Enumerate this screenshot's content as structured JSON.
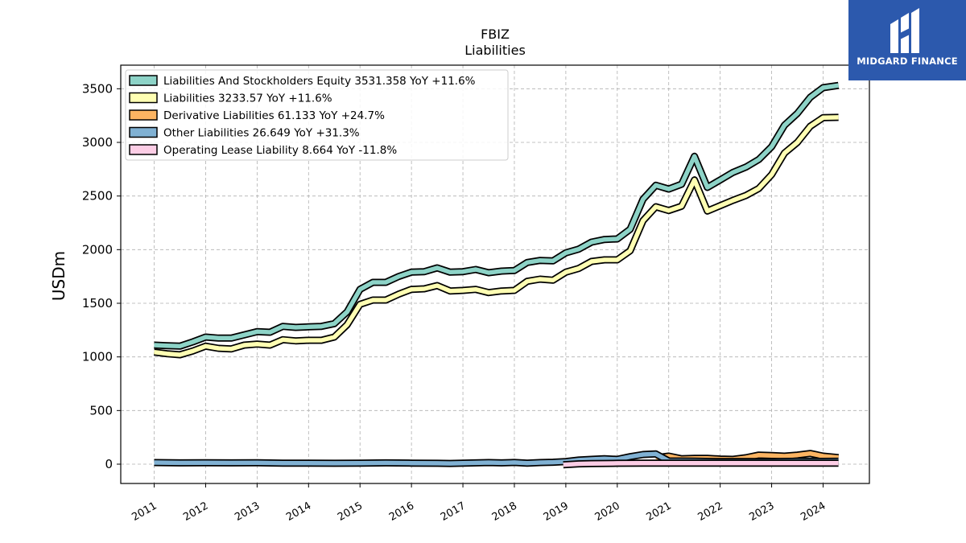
{
  "header": {
    "ticker": "FBIZ",
    "subtitle": "Liabilities"
  },
  "brand": {
    "name": "MIDGARD FINANCE",
    "color": "#2c59ad",
    "logo_icon": "midgard-logo-icon"
  },
  "chart_data": {
    "type": "line",
    "title": "FBIZ",
    "subtitle": "Liabilities",
    "xlabel": "",
    "ylabel": "USDm",
    "xlim": [
      2010.35,
      2024.9
    ],
    "ylim": [
      -180,
      3720
    ],
    "yticks": [
      0,
      500,
      1000,
      1500,
      2000,
      2500,
      3000,
      3500
    ],
    "xticks": [
      "2011",
      "2012",
      "2013",
      "2014",
      "2015",
      "2016",
      "2017",
      "2018",
      "2019",
      "2020",
      "2021",
      "2022",
      "2023",
      "2024"
    ],
    "grid": true,
    "legend_position": "top-left",
    "series": [
      {
        "name": "Liabilities And Stockholders Equity",
        "legend": "Liabilities And Stockholders Equity  3531.358 YoY +11.6%",
        "color": "#8dd3c7",
        "x": [
          2011.0,
          2011.25,
          2011.5,
          2011.75,
          2012.0,
          2012.25,
          2012.5,
          2012.75,
          2013.0,
          2013.25,
          2013.5,
          2013.75,
          2014.0,
          2014.25,
          2014.5,
          2014.75,
          2015.0,
          2015.25,
          2015.5,
          2015.75,
          2016.0,
          2016.25,
          2016.5,
          2016.75,
          2017.0,
          2017.25,
          2017.5,
          2017.75,
          2018.0,
          2018.25,
          2018.5,
          2018.75,
          2019.0,
          2019.25,
          2019.5,
          2019.75,
          2020.0,
          2020.25,
          2020.5,
          2020.75,
          2021.0,
          2021.25,
          2021.5,
          2021.75,
          2022.0,
          2022.25,
          2022.5,
          2022.75,
          2023.0,
          2023.25,
          2023.5,
          2023.75,
          2024.0,
          2024.3
        ],
        "values": [
          1110,
          1105,
          1100,
          1140,
          1185,
          1175,
          1175,
          1205,
          1235,
          1230,
          1285,
          1275,
          1280,
          1285,
          1310,
          1420,
          1630,
          1695,
          1695,
          1750,
          1790,
          1795,
          1830,
          1790,
          1795,
          1815,
          1785,
          1800,
          1805,
          1880,
          1900,
          1895,
          1970,
          2005,
          2070,
          2095,
          2100,
          2190,
          2470,
          2600,
          2565,
          2610,
          2870,
          2580,
          2650,
          2720,
          2770,
          2840,
          2960,
          3160,
          3270,
          3420,
          3510,
          3531.358
        ]
      },
      {
        "name": "Liabilities",
        "legend": "Liabilities  3233.57 YoY +11.6%",
        "color": "#ffffb3",
        "x": [
          2011.0,
          2011.25,
          2011.5,
          2011.75,
          2012.0,
          2012.25,
          2012.5,
          2012.75,
          2013.0,
          2013.25,
          2013.5,
          2013.75,
          2014.0,
          2014.25,
          2014.5,
          2014.75,
          2015.0,
          2015.25,
          2015.5,
          2015.75,
          2016.0,
          2016.25,
          2016.5,
          2016.75,
          2017.0,
          2017.25,
          2017.5,
          2017.75,
          2018.0,
          2018.25,
          2018.5,
          2018.75,
          2019.0,
          2019.25,
          2019.5,
          2019.75,
          2020.0,
          2020.25,
          2020.5,
          2020.75,
          2021.0,
          2021.25,
          2021.5,
          2021.75,
          2022.0,
          2022.25,
          2022.5,
          2022.75,
          2023.0,
          2023.25,
          2023.5,
          2023.75,
          2024.0,
          2024.3
        ],
        "values": [
          1045,
          1030,
          1020,
          1055,
          1100,
          1080,
          1075,
          1110,
          1120,
          1110,
          1160,
          1150,
          1155,
          1155,
          1185,
          1300,
          1490,
          1530,
          1530,
          1585,
          1630,
          1635,
          1665,
          1615,
          1620,
          1630,
          1600,
          1615,
          1620,
          1705,
          1725,
          1715,
          1790,
          1825,
          1890,
          1905,
          1905,
          1990,
          2270,
          2400,
          2365,
          2405,
          2650,
          2360,
          2410,
          2460,
          2505,
          2570,
          2700,
          2900,
          3000,
          3150,
          3230,
          3233.57
        ]
      },
      {
        "name": "Derivative Liabilities",
        "legend": "Derivative Liabilities  61.133 YoY +24.7%",
        "color": "#fdb462",
        "x": [
          2020.75,
          2021.0,
          2021.25,
          2021.5,
          2021.75,
          2022.0,
          2022.25,
          2022.5,
          2022.75,
          2023.0,
          2023.25,
          2023.5,
          2023.75,
          2024.0,
          2024.3
        ],
        "values": [
          60,
          75,
          50,
          55,
          55,
          48,
          45,
          60,
          85,
          80,
          75,
          85,
          100,
          75,
          61.133
        ]
      },
      {
        "name": "Other Liabilities",
        "legend": "Other Liabilities  26.649 YoY +31.3%",
        "color": "#80b1d3",
        "x": [
          2011.0,
          2011.5,
          2012.0,
          2012.5,
          2013.0,
          2013.5,
          2014.0,
          2014.5,
          2015.0,
          2015.5,
          2016.0,
          2016.5,
          2016.75,
          2017.0,
          2017.5,
          2017.75,
          2018.0,
          2018.25,
          2018.5,
          2018.75,
          2019.0,
          2019.25,
          2019.5,
          2019.75,
          2020.0,
          2020.25,
          2020.5,
          2020.75,
          2021.0,
          2021.5,
          2022.0,
          2022.5,
          2023.0,
          2023.5,
          2024.0,
          2024.3
        ],
        "values": [
          15,
          12,
          13,
          12,
          13,
          10,
          9,
          8,
          10,
          12,
          10,
          8,
          7,
          10,
          15,
          12,
          16,
          10,
          15,
          18,
          25,
          38,
          45,
          50,
          45,
          70,
          90,
          95,
          30,
          28,
          24,
          25,
          25,
          27,
          26,
          26.649
        ]
      },
      {
        "name": "Operating Lease Liability",
        "legend": "Operating Lease Liability  8.664 YoY -11.8%",
        "color": "#fccde5",
        "x": [
          2018.95,
          2019.25,
          2019.5,
          2019.75,
          2020.0,
          2020.5,
          2021.0,
          2021.5,
          2022.0,
          2022.5,
          2023.0,
          2023.5,
          2024.0,
          2024.3
        ],
        "values": [
          -5,
          3,
          6,
          7,
          8,
          9,
          10,
          10,
          9,
          10,
          10,
          9,
          9,
          8.664
        ]
      }
    ]
  }
}
